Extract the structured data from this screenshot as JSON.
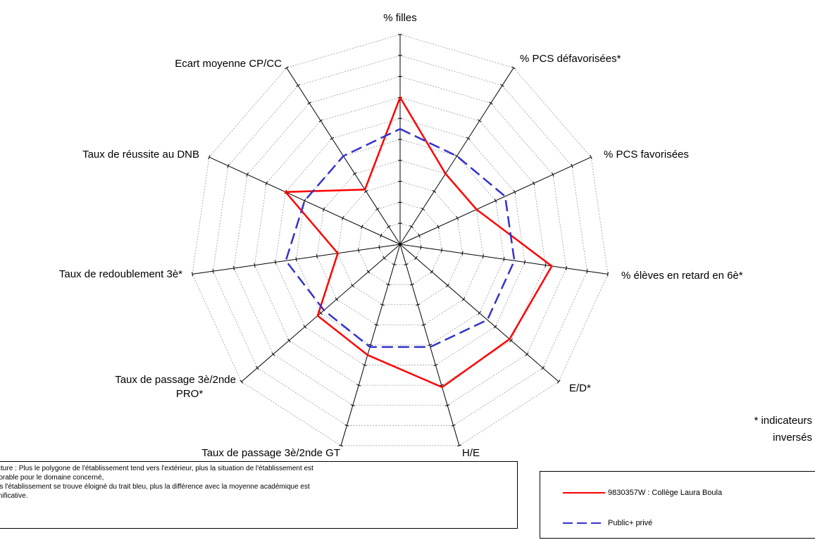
{
  "chart_data": {
    "type": "radar",
    "axes": [
      "% filles",
      "% PCS défavorisées*",
      "% PCS favorisées",
      "% élèves en retard en 6è*",
      "E/D*",
      "H/E",
      "Taux de passage 3è/2nde GT",
      "Taux de passage 3è/2nde PRO*",
      "Taux de redoublement 3è*",
      "Taux de réussite au DNB",
      "Ecart moyenne CP/CC"
    ],
    "rings": 10,
    "range": [
      0,
      10
    ],
    "series": [
      {
        "name": "9830357W : Collège Laura Boula",
        "color": "#ff0000",
        "dash": "solid",
        "values": [
          7.0,
          4.0,
          4.0,
          7.3,
          6.9,
          7.1,
          5.5,
          5.2,
          3.0,
          6.0,
          3.1
        ]
      },
      {
        "name": "Public+ privé",
        "color": "#3333cc",
        "dash": "dashed",
        "values": [
          5.5,
          5.0,
          5.5,
          5.5,
          5.5,
          5.1,
          5.1,
          4.8,
          5.5,
          5.0,
          5.0
        ]
      }
    ],
    "legend_position": "bottom-right",
    "grid": true
  },
  "notes": {
    "line1": "Lecture : Plus le polygone de l'établissement tend vers l'extérieur, plus la situation de l'établissement est",
    "line2": "favorable pour le domaine concerné,",
    "line3": "Plus l'établissement se trouve éloigné du trait bleu, plus la différence avec la moyenne académique est",
    "line4": "significative."
  },
  "footnote": {
    "line1": "* indicateurs",
    "line2": "inversés"
  },
  "legend": {
    "item1": "9830357W : Collège Laura Boula",
    "item2": "Public+ privé"
  }
}
